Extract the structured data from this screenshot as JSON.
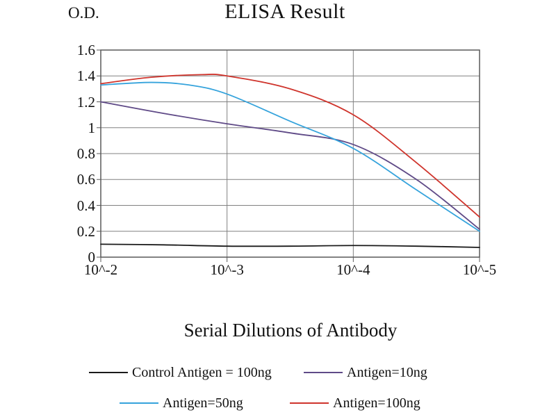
{
  "chart_data": {
    "type": "line",
    "title": "ELISA Result",
    "ylabel": "O.D.",
    "xlabel": "Serial Dilutions of Antibody",
    "x_tick_labels": [
      "10^-2",
      "10^-3",
      "10^-4",
      "10^-5"
    ],
    "y_tick_labels": [
      "0",
      "0.2",
      "0.4",
      "0.6",
      "0.8",
      "1",
      "1.2",
      "1.4",
      "1.6"
    ],
    "y_ticks": [
      0,
      0.2,
      0.4,
      0.6,
      0.8,
      1,
      1.2,
      1.4,
      1.6
    ],
    "ylim": [
      0,
      1.6
    ],
    "xlim": [
      0,
      3
    ],
    "grid": true,
    "legend_position": "bottom",
    "axis_color": "#808080",
    "border_color": "#595959",
    "series": [
      {
        "name": "Control Antigen = 100ng",
        "color": "#1a1a1a",
        "points": [
          [
            0,
            0.1
          ],
          [
            0.5,
            0.095
          ],
          [
            1,
            0.085
          ],
          [
            1.5,
            0.085
          ],
          [
            2,
            0.09
          ],
          [
            2.5,
            0.085
          ],
          [
            3,
            0.075
          ]
        ]
      },
      {
        "name": "Antigen=10ng",
        "color": "#5f4a87",
        "points": [
          [
            0,
            1.2
          ],
          [
            0.5,
            1.11
          ],
          [
            1,
            1.03
          ],
          [
            1.5,
            0.96
          ],
          [
            2,
            0.87
          ],
          [
            2.5,
            0.6
          ],
          [
            3,
            0.215
          ]
        ]
      },
      {
        "name": "Antigen=50ng",
        "color": "#35a3dc",
        "points": [
          [
            0,
            1.33
          ],
          [
            0.4,
            1.35
          ],
          [
            0.7,
            1.33
          ],
          [
            1,
            1.26
          ],
          [
            1.5,
            1.05
          ],
          [
            2,
            0.84
          ],
          [
            2.5,
            0.52
          ],
          [
            3,
            0.2
          ]
        ]
      },
      {
        "name": "Antigen=100ng",
        "color": "#cf342c",
        "points": [
          [
            0,
            1.34
          ],
          [
            0.4,
            1.39
          ],
          [
            0.8,
            1.41
          ],
          [
            1,
            1.4
          ],
          [
            1.5,
            1.3
          ],
          [
            2,
            1.1
          ],
          [
            2.5,
            0.73
          ],
          [
            3,
            0.31
          ]
        ]
      }
    ]
  }
}
